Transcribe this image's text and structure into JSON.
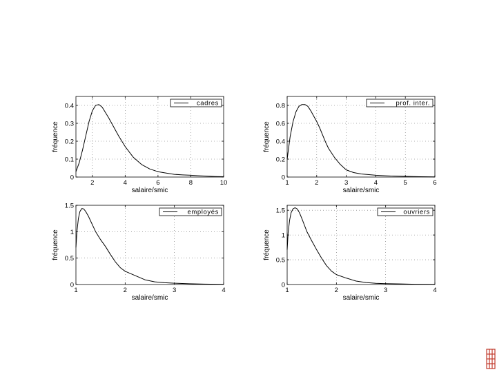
{
  "chart_data": [
    {
      "type": "line",
      "series": [
        {
          "name": "cadres",
          "x": [
            1,
            1.2,
            1.4,
            1.6,
            1.8,
            2.0,
            2.2,
            2.4,
            2.6,
            2.8,
            3.0,
            3.3,
            3.6,
            4.0,
            4.5,
            5.0,
            5.5,
            6.0,
            6.5,
            7.0,
            7.5,
            8.0,
            8.5,
            9.0,
            9.5,
            10.0
          ],
          "y": [
            0.03,
            0.08,
            0.15,
            0.23,
            0.31,
            0.37,
            0.4,
            0.405,
            0.39,
            0.36,
            0.33,
            0.28,
            0.23,
            0.17,
            0.11,
            0.07,
            0.045,
            0.03,
            0.022,
            0.015,
            0.012,
            0.01,
            0.007,
            0.005,
            0.003,
            0.002
          ]
        }
      ],
      "xlabel": "salaire/smic",
      "ylabel": "fréquence",
      "xlim": [
        1,
        10
      ],
      "ylim": [
        0,
        0.45
      ],
      "xticks": [
        2,
        4,
        6,
        8,
        10
      ],
      "yticks": [
        0,
        0.1,
        0.2,
        0.3,
        0.4
      ],
      "xtick_labels": [
        "2",
        "4",
        "6",
        "8",
        "10"
      ],
      "ytick_labels": [
        "0",
        "0.1",
        "0.2",
        "0.3",
        "0.4"
      ],
      "grid": true,
      "legend": "top-right"
    },
    {
      "type": "line",
      "series": [
        {
          "name": "prof. inter.",
          "x": [
            1,
            1.1,
            1.2,
            1.3,
            1.4,
            1.5,
            1.6,
            1.7,
            1.8,
            1.9,
            2.0,
            2.1,
            2.2,
            2.3,
            2.4,
            2.5,
            2.6,
            2.8,
            3.0,
            3.25,
            3.5,
            4.0,
            4.5,
            5.0,
            5.5,
            6.0
          ],
          "y": [
            0.2,
            0.45,
            0.62,
            0.73,
            0.79,
            0.81,
            0.81,
            0.79,
            0.74,
            0.68,
            0.62,
            0.55,
            0.47,
            0.39,
            0.32,
            0.27,
            0.22,
            0.14,
            0.08,
            0.05,
            0.035,
            0.02,
            0.012,
            0.008,
            0.004,
            0.002
          ]
        }
      ],
      "xlabel": "salaire/smic",
      "ylabel": "fréquence",
      "xlim": [
        1,
        6
      ],
      "ylim": [
        0,
        0.9
      ],
      "xticks": [
        1,
        2,
        3,
        4,
        5,
        6
      ],
      "yticks": [
        0,
        0.2,
        0.4,
        0.6,
        0.8
      ],
      "xtick_labels": [
        "1",
        "2",
        "3",
        "4",
        "5",
        "6"
      ],
      "ytick_labels": [
        "0",
        "0.2",
        "0.4",
        "0.6",
        "0.8"
      ],
      "grid": true,
      "legend": "top-right"
    },
    {
      "type": "line",
      "series": [
        {
          "name": "employés",
          "x": [
            1,
            1.02,
            1.05,
            1.08,
            1.12,
            1.16,
            1.2,
            1.25,
            1.3,
            1.35,
            1.4,
            1.5,
            1.6,
            1.7,
            1.8,
            1.9,
            2.0,
            2.2,
            2.4,
            2.6,
            2.8,
            3.0,
            3.3,
            3.6,
            4.0
          ],
          "y": [
            0.7,
            1.0,
            1.25,
            1.38,
            1.44,
            1.43,
            1.38,
            1.3,
            1.2,
            1.1,
            1.0,
            0.85,
            0.72,
            0.57,
            0.43,
            0.32,
            0.25,
            0.17,
            0.09,
            0.05,
            0.035,
            0.025,
            0.015,
            0.008,
            0.004
          ]
        }
      ],
      "xlabel": "salaire/smic",
      "ylabel": "fréquence",
      "xlim": [
        1,
        4
      ],
      "ylim": [
        0,
        1.5
      ],
      "xticks": [
        1,
        2,
        3,
        4
      ],
      "yticks": [
        0,
        0.5,
        1,
        1.5
      ],
      "xtick_labels": [
        "1",
        "2",
        "3",
        "4"
      ],
      "ytick_labels": [
        "0",
        "0.5",
        "1",
        "1.5"
      ],
      "grid": true,
      "legend": "top-right"
    },
    {
      "type": "line",
      "series": [
        {
          "name": "ouvriers",
          "x": [
            1,
            1.02,
            1.05,
            1.08,
            1.12,
            1.16,
            1.2,
            1.25,
            1.3,
            1.35,
            1.4,
            1.5,
            1.6,
            1.7,
            1.8,
            1.9,
            2.0,
            2.2,
            2.4,
            2.6,
            2.8,
            3.0,
            3.3,
            3.6,
            4.0
          ],
          "y": [
            0.7,
            1.05,
            1.3,
            1.45,
            1.53,
            1.55,
            1.53,
            1.45,
            1.33,
            1.2,
            1.07,
            0.88,
            0.7,
            0.53,
            0.38,
            0.27,
            0.2,
            0.13,
            0.07,
            0.04,
            0.025,
            0.018,
            0.012,
            0.006,
            0.003
          ]
        }
      ],
      "xlabel": "salaire/smic",
      "ylabel": "fréquence",
      "xlim": [
        1,
        4
      ],
      "ylim": [
        0,
        1.6
      ],
      "xticks": [
        1,
        2,
        3,
        4
      ],
      "yticks": [
        0,
        0.5,
        1,
        1.5
      ],
      "xtick_labels": [
        "1",
        "2",
        "3",
        "4"
      ],
      "ytick_labels": [
        "0",
        "0.5",
        "1",
        "1.5"
      ],
      "grid": true,
      "legend": "top-right"
    }
  ],
  "colors": {
    "line": "#000000",
    "grid": "#666666",
    "logo": "#c0392b"
  },
  "icons": {
    "corner_logo": "grid-logo-icon"
  }
}
